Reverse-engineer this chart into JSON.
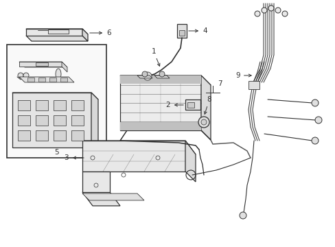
{
  "bg_color": "#ffffff",
  "line_color": "#303030",
  "fig_width": 4.89,
  "fig_height": 3.6,
  "dpi": 100,
  "label_fontsize": 7.5,
  "lw": 0.9
}
